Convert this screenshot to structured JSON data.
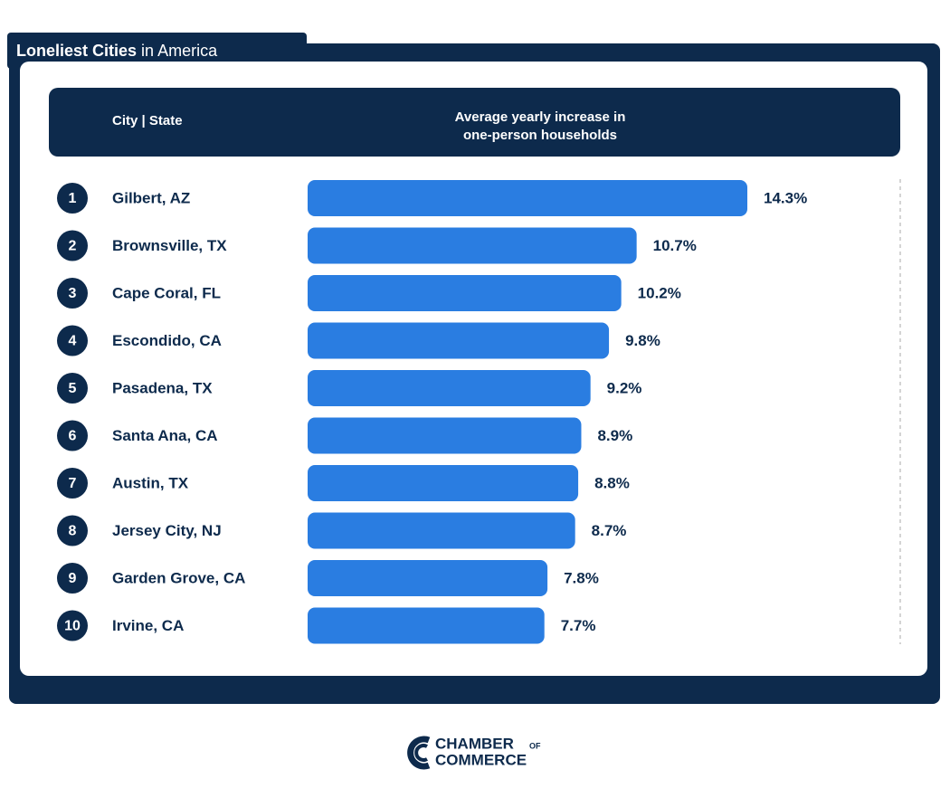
{
  "chart_data": {
    "type": "bar",
    "title_bold": "Loneliest Cities",
    "title_rest": "in America",
    "category_header": "City | State",
    "value_header": [
      "Average yearly increase in",
      "one-person households"
    ],
    "ranks": [
      "1",
      "2",
      "3",
      "4",
      "5",
      "6",
      "7",
      "8",
      "9",
      "10"
    ],
    "categories": [
      "Gilbert, AZ",
      "Brownsville, TX",
      "Cape Coral, FL",
      "Escondido, CA",
      "Pasadena, TX",
      "Santa Ana, CA",
      "Austin, TX",
      "Jersey City, NJ",
      "Garden Grove, CA",
      "Irvine, CA"
    ],
    "values": [
      14.3,
      10.7,
      10.2,
      9.8,
      9.2,
      8.9,
      8.8,
      8.7,
      7.8,
      7.7
    ],
    "value_labels": [
      "14.3%",
      "10.7%",
      "10.2%",
      "9.8%",
      "9.2%",
      "8.9%",
      "8.8%",
      "8.7%",
      "7.8%",
      "7.7%"
    ],
    "color": "#2a7de1",
    "logo": {
      "line1": "CHAMBER",
      "small": "OF",
      "line2": "COMMERCE"
    }
  }
}
